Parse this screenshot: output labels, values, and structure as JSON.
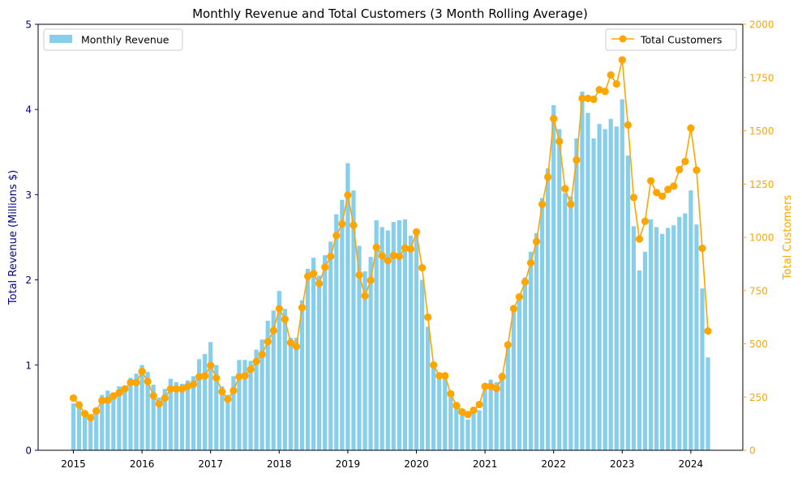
{
  "chart_data": {
    "type": "bar+line",
    "title": "Monthly Revenue and Total Customers (3 Month Rolling Average)",
    "ylabel": "Total Revenue (Millions $)",
    "ylabel_right": "Total Customers",
    "ylim": [
      0,
      5
    ],
    "ylim_right": [
      0,
      2000
    ],
    "yticks": [
      "0",
      "1",
      "2",
      "3",
      "4",
      "5"
    ],
    "yticks_right": [
      "0",
      "250",
      "500",
      "750",
      "1000",
      "1250",
      "1500",
      "1750",
      "2000"
    ],
    "xticks": [
      "2015",
      "2016",
      "2017",
      "2018",
      "2019",
      "2020",
      "2021",
      "2022",
      "2023",
      "2024"
    ],
    "x_start": "2015-01",
    "x_end": "2024-04",
    "grid": false,
    "series": [
      {
        "name": "Monthly Revenue",
        "kind": "bar",
        "axis": "left",
        "legend_position": "upper-left",
        "values": [
          0.55,
          0.5,
          0.42,
          0.38,
          0.5,
          0.65,
          0.7,
          0.68,
          0.75,
          0.75,
          0.85,
          0.9,
          1.0,
          0.92,
          0.77,
          0.62,
          0.72,
          0.84,
          0.8,
          0.78,
          0.82,
          0.87,
          1.07,
          1.13,
          1.27,
          1.0,
          0.75,
          0.65,
          0.87,
          1.06,
          1.06,
          1.05,
          1.18,
          1.3,
          1.52,
          1.64,
          1.87,
          1.66,
          1.32,
          1.32,
          1.76,
          2.13,
          2.26,
          2.05,
          2.29,
          2.45,
          2.77,
          2.94,
          3.37,
          3.05,
          2.4,
          2.1,
          2.27,
          2.7,
          2.62,
          2.58,
          2.68,
          2.7,
          2.71,
          2.52,
          2.58,
          2.0,
          1.45,
          1.0,
          0.88,
          0.86,
          0.62,
          0.5,
          0.42,
          0.36,
          0.45,
          0.47,
          0.77,
          0.83,
          0.8,
          0.91,
          1.25,
          1.65,
          1.78,
          2.03,
          2.33,
          2.55,
          2.96,
          3.31,
          4.05,
          3.77,
          3.02,
          2.98,
          3.66,
          4.21,
          3.96,
          3.66,
          3.83,
          3.77,
          3.89,
          3.8,
          4.12,
          3.46,
          2.63,
          2.11,
          2.33,
          2.71,
          2.62,
          2.54,
          2.61,
          2.64,
          2.74,
          2.78,
          3.05,
          2.65,
          1.9,
          1.09
        ]
      },
      {
        "name": "Total Customers",
        "kind": "line",
        "axis": "right",
        "legend_position": "upper-right",
        "values": [
          245,
          213,
          172,
          153,
          185,
          233,
          235,
          255,
          270,
          288,
          318,
          318,
          370,
          323,
          256,
          218,
          245,
          288,
          288,
          288,
          300,
          310,
          345,
          350,
          398,
          340,
          275,
          240,
          280,
          345,
          350,
          380,
          417,
          450,
          510,
          562,
          665,
          615,
          505,
          487,
          670,
          817,
          830,
          783,
          860,
          910,
          1008,
          1063,
          1198,
          1057,
          823,
          725,
          798,
          953,
          913,
          890,
          915,
          910,
          950,
          945,
          1025,
          857,
          625,
          400,
          350,
          350,
          265,
          210,
          180,
          168,
          188,
          215,
          300,
          300,
          290,
          345,
          495,
          665,
          720,
          790,
          880,
          980,
          1155,
          1283,
          1557,
          1450,
          1228,
          1155,
          1363,
          1652,
          1652,
          1648,
          1693,
          1685,
          1762,
          1720,
          1833,
          1527,
          1187,
          992,
          1075,
          1265,
          1210,
          1193,
          1225,
          1240,
          1318,
          1356,
          1513,
          1315,
          948,
          560
        ]
      }
    ],
    "colors": {
      "bar": "#87ceeb",
      "line": "#ffa500",
      "left_axis": "#00008b",
      "right_axis": "#ffa500"
    }
  }
}
